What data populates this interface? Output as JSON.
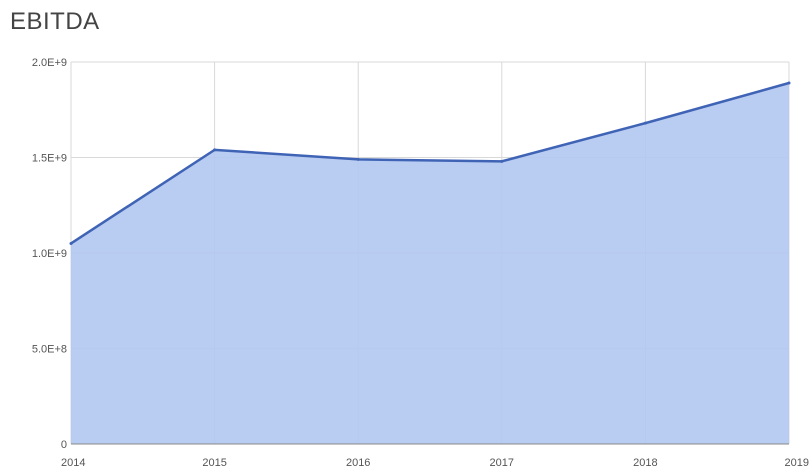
{
  "chart_data": {
    "type": "area",
    "title": "EBITDA",
    "x": [
      "2014",
      "2015",
      "2016",
      "2017",
      "2018",
      "2019"
    ],
    "series": [
      {
        "values": [
          1050000000,
          1540000000,
          1490000000,
          1480000000,
          1680000000,
          1890000000
        ]
      }
    ],
    "yticks": [
      {
        "value": 0,
        "label": "0"
      },
      {
        "value": 500000000,
        "label": "5.0E+8"
      },
      {
        "value": 1000000000,
        "label": "1.0E+9"
      },
      {
        "value": 1500000000,
        "label": "1.5E+9"
      },
      {
        "value": 2000000000,
        "label": "2.0E+9"
      }
    ],
    "ylim": [
      0,
      2000000000
    ],
    "xlabel": "",
    "ylabel": "",
    "grid": true,
    "legend": "none",
    "colors": {
      "fill": "#b1c6f0",
      "line": "#3f63b5",
      "grid": "#d9d9d9",
      "axis": "#888888"
    }
  }
}
